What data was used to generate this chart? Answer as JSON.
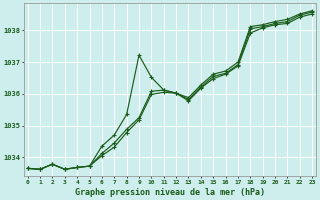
{
  "title": "Graphe pression niveau de la mer (hPa)",
  "bg_color": "#ceeeed",
  "grid_color": "#b8e8e8",
  "line_color": "#1a5c1a",
  "xlim": [
    -0.3,
    23.3
  ],
  "ylim": [
    1033.4,
    1038.85
  ],
  "yticks": [
    1034,
    1035,
    1036,
    1037,
    1038
  ],
  "xticks": [
    0,
    1,
    2,
    3,
    4,
    5,
    6,
    7,
    8,
    9,
    10,
    11,
    12,
    13,
    14,
    15,
    16,
    17,
    18,
    19,
    20,
    21,
    22,
    23
  ],
  "series1": [
    1033.65,
    1033.62,
    1033.78,
    1033.62,
    1033.68,
    1033.72,
    1034.35,
    1034.7,
    1035.35,
    1037.22,
    1036.52,
    1036.12,
    1036.02,
    1035.88,
    1036.28,
    1036.62,
    1036.72,
    1037.0,
    1038.12,
    1038.18,
    1038.28,
    1038.35,
    1038.52,
    1038.62
  ],
  "series2": [
    1033.65,
    1033.62,
    1033.78,
    1033.62,
    1033.68,
    1033.72,
    1034.12,
    1034.45,
    1034.88,
    1035.25,
    1036.08,
    1036.12,
    1036.02,
    1035.82,
    1036.22,
    1036.55,
    1036.65,
    1036.92,
    1038.05,
    1038.12,
    1038.22,
    1038.28,
    1038.48,
    1038.58
  ],
  "series3": [
    1033.65,
    1033.62,
    1033.78,
    1033.62,
    1033.68,
    1033.72,
    1034.05,
    1034.32,
    1034.78,
    1035.18,
    1035.98,
    1036.05,
    1036.02,
    1035.78,
    1036.18,
    1036.48,
    1036.62,
    1036.88,
    1037.92,
    1038.08,
    1038.18,
    1038.22,
    1038.42,
    1038.52
  ]
}
